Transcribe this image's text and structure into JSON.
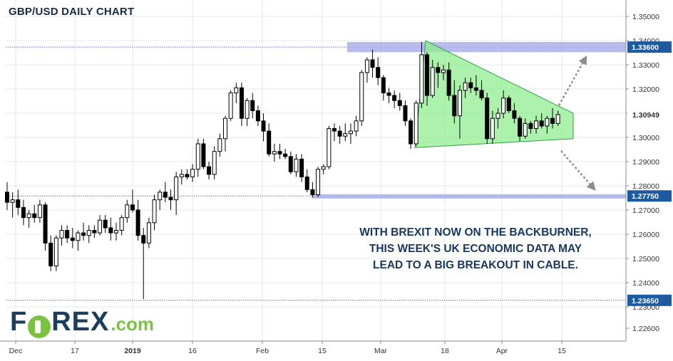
{
  "chart_data": {
    "type": "candlestick",
    "title": "GBP/USD DAILY CHART",
    "y_ticks": [
      "1.35000",
      "1.34000",
      "1.33000",
      "1.32000",
      "1.31000",
      "1.30000",
      "1.29000",
      "1.28000",
      "1.27000",
      "1.26000",
      "1.25000",
      "1.24000",
      "1.23000",
      "1.22600"
    ],
    "x_ticks": [
      "Dec",
      "17",
      "2019",
      "16",
      "Feb",
      "15",
      "Mar",
      "18",
      "Apr",
      "15"
    ],
    "ylim": [
      1.2205,
      1.3545
    ],
    "price_levels": [
      {
        "label": "1.33600",
        "value": 1.336
      },
      {
        "label": "1.30949",
        "value": 1.30949,
        "current": true
      },
      {
        "label": "1.27750",
        "value": 1.2775
      },
      {
        "label": "1.23650",
        "value": 1.2365
      }
    ],
    "resistance_zone": [
      1.334,
      1.338
    ],
    "support_zone": [
      1.2765,
      1.2782
    ],
    "triangle": {
      "upper": [
        1.3385,
        1.31
      ],
      "lower": [
        1.2965,
        1.3
      ]
    },
    "ohlc": [
      [
        1.279,
        1.283,
        1.272,
        1.275
      ],
      [
        1.275,
        1.279,
        1.269,
        1.276
      ],
      [
        1.276,
        1.28,
        1.27,
        1.273
      ],
      [
        1.273,
        1.276,
        1.266,
        1.269
      ],
      [
        1.269,
        1.272,
        1.265,
        1.2705
      ],
      [
        1.2705,
        1.274,
        1.267,
        1.269
      ],
      [
        1.269,
        1.276,
        1.267,
        1.274
      ],
      [
        1.274,
        1.275,
        1.256,
        1.259
      ],
      [
        1.259,
        1.262,
        1.248,
        1.25
      ],
      [
        1.25,
        1.262,
        1.248,
        1.261
      ],
      [
        1.261,
        1.266,
        1.258,
        1.264
      ],
      [
        1.264,
        1.266,
        1.259,
        1.261
      ],
      [
        1.261,
        1.265,
        1.257,
        1.26
      ],
      [
        1.26,
        1.264,
        1.256,
        1.263
      ],
      [
        1.263,
        1.267,
        1.26,
        1.262
      ],
      [
        1.262,
        1.266,
        1.259,
        1.264
      ],
      [
        1.264,
        1.266,
        1.261,
        1.263
      ],
      [
        1.263,
        1.27,
        1.262,
        1.268
      ],
      [
        1.268,
        1.27,
        1.263,
        1.265
      ],
      [
        1.265,
        1.269,
        1.26,
        1.263
      ],
      [
        1.263,
        1.267,
        1.26,
        1.264
      ],
      [
        1.264,
        1.27,
        1.262,
        1.269
      ],
      [
        1.269,
        1.276,
        1.267,
        1.274
      ],
      [
        1.274,
        1.28,
        1.271,
        1.272
      ],
      [
        1.272,
        1.276,
        1.26,
        1.262
      ],
      [
        1.262,
        1.265,
        1.237,
        1.259
      ],
      [
        1.259,
        1.269,
        1.257,
        1.267
      ],
      [
        1.267,
        1.278,
        1.264,
        1.276
      ],
      [
        1.276,
        1.28,
        1.272,
        1.279
      ],
      [
        1.279,
        1.283,
        1.275,
        1.277
      ],
      [
        1.277,
        1.28,
        1.272,
        1.276
      ],
      [
        1.276,
        1.287,
        1.27,
        1.285
      ],
      [
        1.285,
        1.288,
        1.282,
        1.286
      ],
      [
        1.286,
        1.288,
        1.284,
        1.285
      ],
      [
        1.285,
        1.29,
        1.283,
        1.288
      ],
      [
        1.288,
        1.3,
        1.285,
        1.298
      ],
      [
        1.298,
        1.3,
        1.288,
        1.289
      ],
      [
        1.289,
        1.291,
        1.284,
        1.286
      ],
      [
        1.286,
        1.297,
        1.284,
        1.295
      ],
      [
        1.295,
        1.302,
        1.293,
        1.3
      ],
      [
        1.3,
        1.309,
        1.295,
        1.308
      ],
      [
        1.308,
        1.319,
        1.307,
        1.318
      ],
      [
        1.318,
        1.322,
        1.314,
        1.32
      ],
      [
        1.32,
        1.322,
        1.305,
        1.308
      ],
      [
        1.308,
        1.316,
        1.305,
        1.315
      ],
      [
        1.315,
        1.318,
        1.308,
        1.311
      ],
      [
        1.311,
        1.313,
        1.305,
        1.307
      ],
      [
        1.307,
        1.31,
        1.299,
        1.303
      ],
      [
        1.303,
        1.306,
        1.293,
        1.294
      ],
      [
        1.294,
        1.298,
        1.291,
        1.295
      ],
      [
        1.295,
        1.298,
        1.292,
        1.294
      ],
      [
        1.294,
        1.296,
        1.292,
        1.293
      ],
      [
        1.293,
        1.295,
        1.286,
        1.287
      ],
      [
        1.287,
        1.294,
        1.285,
        1.292
      ],
      [
        1.292,
        1.294,
        1.283,
        1.285
      ],
      [
        1.285,
        1.288,
        1.279,
        1.28
      ],
      [
        1.28,
        1.283,
        1.277,
        1.278
      ],
      [
        1.278,
        1.289,
        1.277,
        1.288
      ],
      [
        1.288,
        1.29,
        1.286,
        1.289
      ],
      [
        1.289,
        1.305,
        1.288,
        1.304
      ],
      [
        1.304,
        1.306,
        1.299,
        1.303
      ],
      [
        1.303,
        1.305,
        1.298,
        1.301
      ],
      [
        1.301,
        1.306,
        1.299,
        1.302
      ],
      [
        1.302,
        1.306,
        1.298,
        1.303
      ],
      [
        1.303,
        1.309,
        1.301,
        1.307
      ],
      [
        1.307,
        1.327,
        1.305,
        1.326
      ],
      [
        1.326,
        1.332,
        1.322,
        1.331
      ],
      [
        1.331,
        1.335,
        1.324,
        1.328
      ],
      [
        1.328,
        1.332,
        1.321,
        1.324
      ],
      [
        1.324,
        1.325,
        1.315,
        1.318
      ],
      [
        1.318,
        1.32,
        1.314,
        1.317
      ],
      [
        1.317,
        1.319,
        1.312,
        1.315
      ],
      [
        1.315,
        1.318,
        1.311,
        1.313
      ],
      [
        1.313,
        1.315,
        1.305,
        1.307
      ],
      [
        1.307,
        1.308,
        1.296,
        1.298
      ],
      [
        1.298,
        1.315,
        1.297,
        1.314
      ],
      [
        1.314,
        1.338,
        1.312,
        1.333
      ],
      [
        1.333,
        1.334,
        1.313,
        1.317
      ],
      [
        1.317,
        1.331,
        1.316,
        1.328
      ],
      [
        1.328,
        1.33,
        1.32,
        1.326
      ],
      [
        1.326,
        1.329,
        1.323,
        1.327
      ],
      [
        1.327,
        1.33,
        1.315,
        1.317
      ],
      [
        1.317,
        1.323,
        1.306,
        1.309
      ],
      [
        1.309,
        1.321,
        1.3,
        1.319
      ],
      [
        1.319,
        1.324,
        1.316,
        1.322
      ],
      [
        1.322,
        1.324,
        1.318,
        1.32
      ],
      [
        1.32,
        1.325,
        1.317,
        1.319
      ],
      [
        1.319,
        1.323,
        1.315,
        1.316
      ],
      [
        1.316,
        1.318,
        1.298,
        1.3
      ],
      [
        1.3,
        1.311,
        1.298,
        1.308
      ],
      [
        1.308,
        1.312,
        1.304,
        1.31
      ],
      [
        1.31,
        1.319,
        1.308,
        1.316
      ],
      [
        1.316,
        1.317,
        1.31,
        1.311
      ],
      [
        1.311,
        1.314,
        1.306,
        1.308
      ],
      [
        1.308,
        1.309,
        1.299,
        1.301
      ],
      [
        1.301,
        1.308,
        1.3,
        1.306
      ],
      [
        1.306,
        1.307,
        1.302,
        1.304
      ],
      [
        1.304,
        1.309,
        1.302,
        1.307
      ],
      [
        1.307,
        1.31,
        1.304,
        1.305
      ],
      [
        1.305,
        1.309,
        1.302,
        1.308
      ],
      [
        1.308,
        1.312,
        1.304,
        1.306
      ],
      [
        1.306,
        1.311,
        1.305,
        1.3095
      ]
    ]
  },
  "annotation": {
    "line1": "WITH BREXIT NOW ON THE BACKBURNER,",
    "line2": "THIS WEEK'S UK ECONOMIC DATA MAY",
    "line3": "LEAD TO A BIG BREAKOUT IN CABLE."
  },
  "logo": {
    "part1": "F",
    "part2": "REX",
    "suffix": ".com"
  },
  "colors": {
    "candle_up": "#ffffff",
    "candle_down": "#000000",
    "wick": "#000000",
    "zone": "#aab0ea",
    "triangle_fill": "#90ee90",
    "triangle_stroke": "#2e9e3e",
    "level_line": "#5a6fd0",
    "price_box": "#1e5aa0",
    "arrow": "#8c8c8c",
    "grid": "#e4e7ef",
    "axis": "#888888"
  }
}
